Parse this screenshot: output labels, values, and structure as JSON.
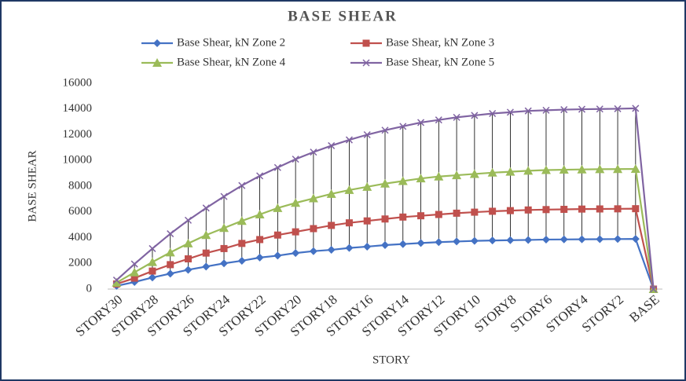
{
  "chart_data": {
    "type": "line",
    "title": "BASE SHEAR",
    "x_label": "STORY",
    "y_label": "BASE SHEAR",
    "categories": [
      "STORY30",
      null,
      "STORY28",
      null,
      "STORY26",
      null,
      "STORY24",
      null,
      "STORY22",
      null,
      "STORY20",
      null,
      "STORY18",
      null,
      "STORY16",
      null,
      "STORY14",
      null,
      "STORY12",
      null,
      "STORY10",
      null,
      "STORY8",
      null,
      "STORY6",
      null,
      "STORY4",
      null,
      "STORY2",
      null,
      "BASE"
    ],
    "series": [
      {
        "name": "Base Shear, kN Zone 2",
        "color": "#4472c4",
        "marker": "diamond",
        "values": [
          250,
          550,
          900,
          1200,
          1500,
          1750,
          2000,
          2200,
          2450,
          2600,
          2800,
          2950,
          3050,
          3200,
          3300,
          3420,
          3500,
          3580,
          3650,
          3700,
          3750,
          3780,
          3800,
          3820,
          3850,
          3860,
          3870,
          3880,
          3890,
          3900,
          0
        ]
      },
      {
        "name": "Base Shear, kN Zone 3",
        "color": "#c0504d",
        "marker": "square",
        "values": [
          400,
          850,
          1400,
          1900,
          2350,
          2800,
          3150,
          3550,
          3850,
          4200,
          4450,
          4700,
          4950,
          5150,
          5300,
          5450,
          5600,
          5700,
          5800,
          5900,
          5980,
          6050,
          6100,
          6150,
          6180,
          6200,
          6220,
          6230,
          6240,
          6250,
          0
        ]
      },
      {
        "name": "Base Shear, kN Zone 4",
        "color": "#9bbb59",
        "marker": "triangle",
        "values": [
          500,
          1300,
          2100,
          2850,
          3550,
          4200,
          4750,
          5300,
          5800,
          6300,
          6700,
          7050,
          7400,
          7700,
          7950,
          8200,
          8400,
          8600,
          8750,
          8850,
          8950,
          9050,
          9120,
          9200,
          9250,
          9280,
          9300,
          9320,
          9330,
          9340,
          0
        ]
      },
      {
        "name": "Base Shear, kN Zone 5",
        "color": "#8064a2",
        "marker": "x",
        "values": [
          700,
          1950,
          3150,
          4300,
          5350,
          6300,
          7200,
          8050,
          8800,
          9450,
          10100,
          10650,
          11150,
          11600,
          12000,
          12350,
          12650,
          12950,
          13150,
          13350,
          13500,
          13650,
          13750,
          13850,
          13900,
          13950,
          13980,
          14000,
          14020,
          14050,
          0
        ]
      }
    ],
    "ylim": [
      0,
      16000
    ],
    "yticks": [
      0,
      2000,
      4000,
      6000,
      8000,
      10000,
      12000,
      14000,
      16000
    ],
    "grid": false,
    "high_low_lines": true,
    "legend": "top"
  }
}
